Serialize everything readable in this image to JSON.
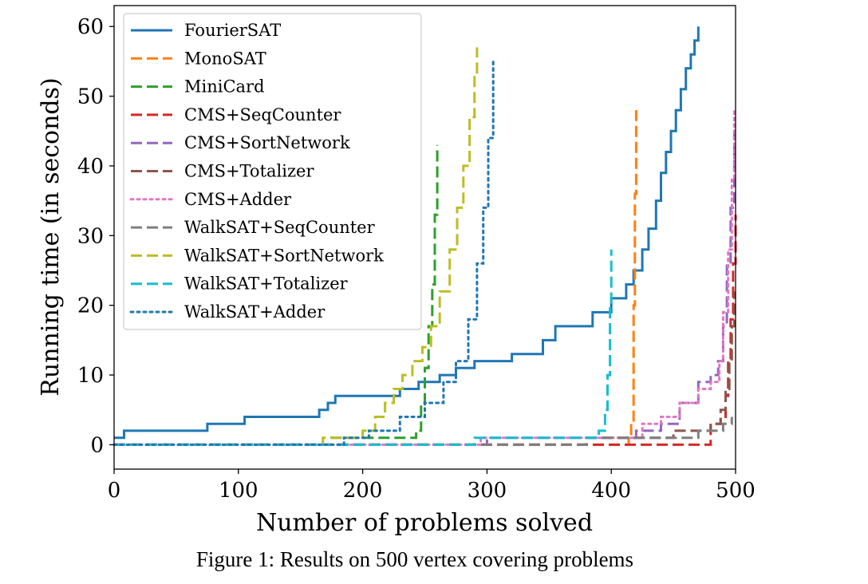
{
  "caption": "Figure 1: Results on 500 vertex covering problems",
  "chart_data": {
    "type": "line",
    "xlabel": "Number of problems solved",
    "ylabel": "Running time (in seconds)",
    "xlim": [
      0,
      500
    ],
    "ylim": [
      -3.5,
      63
    ],
    "xticks": [
      0,
      100,
      200,
      300,
      400,
      500
    ],
    "yticks": [
      0,
      10,
      20,
      30,
      40,
      50,
      60
    ],
    "grid": false,
    "legend_position": "top-left",
    "series": [
      {
        "name": "FourierSAT",
        "color": "#1f77b4",
        "style": "solid",
        "x": [
          0,
          5,
          8,
          75,
          105,
          165,
          172,
          178,
          198,
          230,
          245,
          262,
          275,
          290,
          320,
          345,
          355,
          385,
          400,
          412,
          418,
          425,
          430,
          436,
          440,
          444,
          448,
          452,
          456,
          460,
          464,
          467,
          470
        ],
        "y": [
          1,
          1,
          2,
          3,
          4,
          5,
          6,
          7,
          7,
          8,
          9,
          10,
          11,
          12,
          13,
          15,
          17,
          19,
          21,
          23,
          25,
          28,
          31,
          35,
          39,
          42,
          45,
          48,
          51,
          54,
          56,
          58,
          60
        ]
      },
      {
        "name": "MonoSAT",
        "color": "#ff7f0e",
        "style": "dash",
        "x": [
          0,
          410,
          414,
          416,
          418,
          419,
          420
        ],
        "y": [
          0,
          0,
          1,
          3,
          20,
          36,
          48
        ]
      },
      {
        "name": "MiniCard",
        "color": "#2ca02c",
        "style": "dash",
        "x": [
          0,
          175,
          240,
          243,
          247,
          250,
          253,
          256,
          258,
          260
        ],
        "y": [
          0,
          1,
          1,
          2,
          6,
          11,
          17,
          23,
          33,
          43
        ]
      },
      {
        "name": "CMS+SeqCounter",
        "color": "#d62728",
        "style": "dash",
        "x": [
          0,
          480,
          488,
          492,
          494,
          496,
          498,
          500
        ],
        "y": [
          0,
          3,
          4,
          7,
          12,
          18,
          26,
          33
        ]
      },
      {
        "name": "CMS+SortNetwork",
        "color": "#9467bd",
        "style": "dash",
        "x": [
          0,
          300,
          420,
          440,
          455,
          470,
          480,
          486,
          490,
          493,
          496,
          499
        ],
        "y": [
          0,
          1,
          2,
          3,
          6,
          9,
          10,
          12,
          17,
          26,
          34,
          45
        ]
      },
      {
        "name": "CMS+Totalizer",
        "color": "#8c564b",
        "style": "dash",
        "x": [
          0,
          350,
          380,
          420,
          450,
          470,
          480,
          488,
          492,
          495,
          497,
          499
        ],
        "y": [
          0,
          0,
          1,
          1,
          2,
          2,
          3,
          5,
          8,
          12,
          17,
          22
        ]
      },
      {
        "name": "CMS+Adder",
        "color": "#e377c2",
        "style": "dot",
        "x": [
          0,
          295,
          405,
          425,
          440,
          455,
          470,
          480,
          487,
          490,
          494,
          497,
          499
        ],
        "y": [
          0,
          1,
          1,
          3,
          4,
          6,
          8,
          9,
          12,
          19,
          28,
          38,
          48
        ]
      },
      {
        "name": "WalkSAT+SeqCounter",
        "color": "#7f7f7f",
        "style": "dash",
        "x": [
          0,
          330,
          380,
          440,
          470,
          490,
          495,
          497
        ],
        "y": [
          0,
          0,
          1,
          1,
          2,
          3,
          3,
          4
        ]
      },
      {
        "name": "WalkSAT+SortNetwork",
        "color": "#bcbd22",
        "style": "dash",
        "x": [
          0,
          168,
          185,
          200,
          210,
          218,
          225,
          232,
          240,
          248,
          255,
          262,
          270,
          276,
          281,
          286,
          290,
          292
        ],
        "y": [
          0,
          1,
          1,
          2,
          4,
          6,
          8,
          10,
          12,
          14,
          17,
          22,
          28,
          34,
          40,
          47,
          53,
          57
        ]
      },
      {
        "name": "WalkSAT+Totalizer",
        "color": "#17becf",
        "style": "dash",
        "x": [
          0,
          290,
          380,
          390,
          395,
          397,
          399,
          400
        ],
        "y": [
          0,
          1,
          1,
          2,
          5,
          10,
          20,
          28
        ]
      },
      {
        "name": "WalkSAT+Adder",
        "color": "#1f77b4",
        "style": "dot",
        "x": [
          0,
          185,
          205,
          230,
          250,
          265,
          275,
          285,
          292,
          297,
          301,
          305
        ],
        "y": [
          0,
          1,
          2,
          4,
          6,
          9,
          12,
          18,
          26,
          34,
          44,
          55
        ]
      }
    ]
  }
}
